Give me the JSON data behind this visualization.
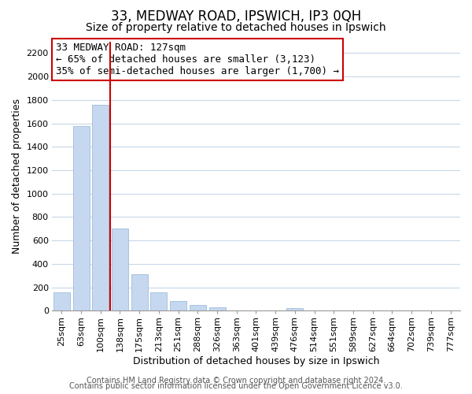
{
  "title": "33, MEDWAY ROAD, IPSWICH, IP3 0QH",
  "subtitle": "Size of property relative to detached houses in Ipswich",
  "xlabel": "Distribution of detached houses by size in Ipswich",
  "ylabel": "Number of detached properties",
  "categories": [
    "25sqm",
    "63sqm",
    "100sqm",
    "138sqm",
    "175sqm",
    "213sqm",
    "251sqm",
    "288sqm",
    "326sqm",
    "363sqm",
    "401sqm",
    "439sqm",
    "476sqm",
    "514sqm",
    "551sqm",
    "589sqm",
    "627sqm",
    "664sqm",
    "702sqm",
    "739sqm",
    "777sqm"
  ],
  "values": [
    160,
    1580,
    1760,
    700,
    315,
    155,
    80,
    50,
    30,
    0,
    0,
    0,
    20,
    0,
    0,
    0,
    0,
    0,
    0,
    0,
    0
  ],
  "bar_color": "#c5d8f0",
  "bar_edge_color": "#a0bcd8",
  "marker_color": "#cc0000",
  "annotation_line1": "33 MEDWAY ROAD: 127sqm",
  "annotation_line2": "← 65% of detached houses are smaller (3,123)",
  "annotation_line3": "35% of semi-detached houses are larger (1,700) →",
  "ylim": [
    0,
    2300
  ],
  "yticks": [
    0,
    200,
    400,
    600,
    800,
    1000,
    1200,
    1400,
    1600,
    1800,
    2000,
    2200
  ],
  "footer_line1": "Contains HM Land Registry data © Crown copyright and database right 2024.",
  "footer_line2": "Contains public sector information licensed under the Open Government Licence v3.0.",
  "background_color": "#ffffff",
  "grid_color": "#c8d8e8",
  "title_fontsize": 12,
  "subtitle_fontsize": 10,
  "axis_label_fontsize": 9,
  "tick_fontsize": 8,
  "annot_fontsize": 9,
  "footer_fontsize": 7
}
